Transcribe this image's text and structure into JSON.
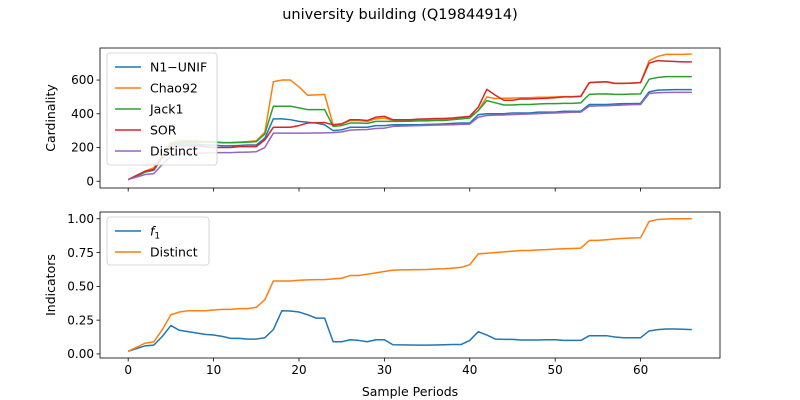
{
  "figure": {
    "title": "university building (Q19844914)"
  },
  "chart_data": [
    {
      "type": "line",
      "ylabel": "Cardinality",
      "xlabel": "",
      "xlim": [
        -3.3,
        69.3
      ],
      "ylim": [
        -40,
        790
      ],
      "xticks": [
        0,
        10,
        20,
        30,
        40,
        50,
        60
      ],
      "xtick_labels_visible": false,
      "yticks": [
        0,
        200,
        400,
        600
      ],
      "legend": "upper-left",
      "grid": false,
      "x": [
        0,
        1,
        2,
        3,
        4,
        5,
        6,
        7,
        8,
        9,
        10,
        11,
        12,
        13,
        14,
        15,
        16,
        17,
        18,
        19,
        20,
        21,
        22,
        23,
        24,
        25,
        26,
        27,
        28,
        29,
        30,
        31,
        32,
        33,
        34,
        35,
        36,
        37,
        38,
        39,
        40,
        41,
        42,
        43,
        44,
        45,
        46,
        47,
        48,
        49,
        50,
        51,
        52,
        53,
        54,
        55,
        56,
        57,
        58,
        59,
        60,
        61,
        62,
        63,
        64,
        65,
        66
      ],
      "series": [
        {
          "name": "N1−UNIF",
          "color": "#1f77b4",
          "values": [
            10,
            30,
            55,
            65,
            140,
            215,
            220,
            220,
            220,
            215,
            215,
            210,
            210,
            212,
            215,
            215,
            255,
            370,
            370,
            365,
            355,
            350,
            345,
            335,
            300,
            305,
            320,
            320,
            320,
            330,
            330,
            335,
            335,
            335,
            335,
            337,
            338,
            340,
            343,
            345,
            345,
            395,
            400,
            400,
            400,
            405,
            405,
            405,
            410,
            410,
            410,
            415,
            415,
            415,
            455,
            455,
            455,
            458,
            460,
            460,
            462,
            530,
            540,
            542,
            543,
            543,
            543
          ]
        },
        {
          "name": "Chao92",
          "color": "#ff7f0e",
          "values": [
            10,
            30,
            60,
            80,
            150,
            230,
            240,
            240,
            240,
            235,
            235,
            230,
            230,
            232,
            235,
            240,
            290,
            590,
            600,
            600,
            560,
            510,
            512,
            515,
            335,
            340,
            360,
            360,
            355,
            370,
            375,
            360,
            360,
            360,
            362,
            363,
            365,
            365,
            370,
            375,
            380,
            420,
            500,
            490,
            492,
            493,
            495,
            495,
            498,
            498,
            500,
            502,
            502,
            505,
            585,
            588,
            590,
            580,
            580,
            582,
            585,
            715,
            740,
            752,
            752,
            752,
            755
          ]
        },
        {
          "name": "Jack1",
          "color": "#2ca02c",
          "values": [
            10,
            30,
            55,
            70,
            145,
            220,
            230,
            232,
            232,
            232,
            232,
            228,
            228,
            230,
            232,
            235,
            280,
            445,
            445,
            445,
            435,
            425,
            425,
            425,
            325,
            330,
            345,
            345,
            343,
            355,
            355,
            355,
            355,
            356,
            358,
            358,
            360,
            360,
            365,
            370,
            375,
            420,
            478,
            465,
            452,
            452,
            455,
            455,
            458,
            460,
            460,
            462,
            462,
            465,
            515,
            517,
            518,
            515,
            515,
            517,
            518,
            605,
            615,
            620,
            620,
            620,
            620
          ]
        },
        {
          "name": "SOR",
          "color": "#d62728",
          "values": [
            10,
            35,
            60,
            70,
            140,
            210,
            210,
            210,
            210,
            205,
            200,
            200,
            200,
            205,
            205,
            205,
            245,
            320,
            320,
            320,
            330,
            345,
            347,
            348,
            335,
            340,
            365,
            365,
            360,
            380,
            385,
            365,
            365,
            365,
            368,
            370,
            372,
            372,
            375,
            380,
            385,
            440,
            545,
            510,
            480,
            480,
            488,
            488,
            490,
            492,
            495,
            500,
            500,
            503,
            585,
            588,
            590,
            580,
            580,
            582,
            585,
            700,
            715,
            712,
            710,
            708,
            708
          ]
        },
        {
          "name": "Distinct",
          "color": "#9467bd",
          "values": [
            10,
            25,
            40,
            45,
            100,
            150,
            160,
            165,
            165,
            168,
            170,
            170,
            170,
            172,
            173,
            175,
            200,
            285,
            285,
            285,
            285,
            285,
            286,
            287,
            288,
            293,
            303,
            305,
            307,
            313,
            315,
            325,
            327,
            328,
            330,
            331,
            333,
            334,
            335,
            337,
            339,
            380,
            390,
            392,
            393,
            395,
            397,
            399,
            401,
            403,
            405,
            407,
            409,
            410,
            445,
            447,
            448,
            450,
            452,
            454,
            455,
            520,
            525,
            526,
            527,
            527,
            527
          ]
        }
      ]
    },
    {
      "type": "line",
      "ylabel": "Indicators",
      "xlabel": "Sample Periods",
      "xlim": [
        -3.3,
        69.3
      ],
      "ylim": [
        -0.03,
        1.05
      ],
      "xticks": [
        0,
        10,
        20,
        30,
        40,
        50,
        60
      ],
      "yticks": [
        0.0,
        0.25,
        0.5,
        0.75,
        1.0
      ],
      "ytick_labels": [
        "0.00",
        "0.25",
        "0.50",
        "0.75",
        "1.00"
      ],
      "legend": "upper-left",
      "grid": false,
      "x": [
        0,
        1,
        2,
        3,
        4,
        5,
        6,
        7,
        8,
        9,
        10,
        11,
        12,
        13,
        14,
        15,
        16,
        17,
        18,
        19,
        20,
        21,
        22,
        23,
        24,
        25,
        26,
        27,
        28,
        29,
        30,
        31,
        32,
        33,
        34,
        35,
        36,
        37,
        38,
        39,
        40,
        41,
        42,
        43,
        44,
        45,
        46,
        47,
        48,
        49,
        50,
        51,
        52,
        53,
        54,
        55,
        56,
        57,
        58,
        59,
        60,
        61,
        62,
        63,
        64,
        65,
        66
      ],
      "series": [
        {
          "name": "f",
          "name_subscript": "1",
          "color": "#1f77b4",
          "values": [
            0.02,
            0.04,
            0.06,
            0.065,
            0.13,
            0.21,
            0.175,
            0.165,
            0.155,
            0.145,
            0.14,
            0.13,
            0.115,
            0.115,
            0.11,
            0.11,
            0.12,
            0.18,
            0.32,
            0.318,
            0.31,
            0.29,
            0.265,
            0.265,
            0.09,
            0.09,
            0.105,
            0.1,
            0.09,
            0.105,
            0.105,
            0.068,
            0.067,
            0.066,
            0.065,
            0.065,
            0.066,
            0.068,
            0.07,
            0.07,
            0.1,
            0.165,
            0.14,
            0.11,
            0.108,
            0.108,
            0.103,
            0.103,
            0.103,
            0.105,
            0.105,
            0.1,
            0.1,
            0.1,
            0.135,
            0.135,
            0.135,
            0.125,
            0.12,
            0.12,
            0.12,
            0.17,
            0.18,
            0.185,
            0.185,
            0.183,
            0.18
          ]
        },
        {
          "name": "Distinct",
          "color": "#ff7f0e",
          "values": [
            0.02,
            0.05,
            0.08,
            0.09,
            0.18,
            0.29,
            0.31,
            0.32,
            0.32,
            0.32,
            0.325,
            0.33,
            0.33,
            0.335,
            0.335,
            0.345,
            0.4,
            0.54,
            0.54,
            0.54,
            0.545,
            0.548,
            0.55,
            0.55,
            0.555,
            0.56,
            0.58,
            0.58,
            0.59,
            0.6,
            0.61,
            0.62,
            0.622,
            0.623,
            0.624,
            0.625,
            0.628,
            0.63,
            0.635,
            0.64,
            0.66,
            0.74,
            0.745,
            0.75,
            0.755,
            0.76,
            0.765,
            0.765,
            0.77,
            0.772,
            0.775,
            0.778,
            0.78,
            0.783,
            0.84,
            0.84,
            0.845,
            0.85,
            0.855,
            0.858,
            0.86,
            0.98,
            0.995,
            0.998,
            1.0,
            1.0,
            1.0
          ]
        }
      ]
    }
  ]
}
